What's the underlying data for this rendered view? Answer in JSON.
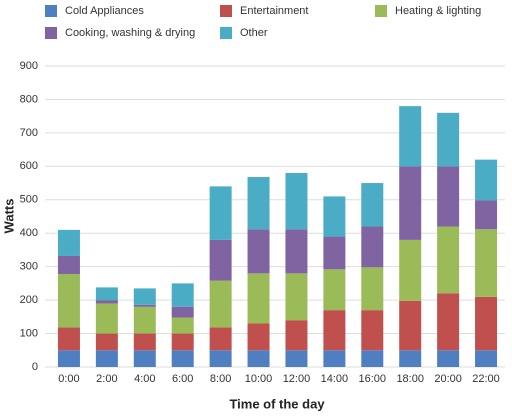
{
  "chart_data": {
    "type": "stacked-bar",
    "x_label": "Time of the day",
    "y_label": "Watts",
    "categories": [
      "0:00",
      "2:00",
      "4:00",
      "6:00",
      "8:00",
      "10:00",
      "12:00",
      "14:00",
      "16:00",
      "18:00",
      "20:00",
      "22:00"
    ],
    "series": [
      {
        "name": "Cold Appliances",
        "color": "#4f7fc1",
        "values": [
          50,
          50,
          50,
          50,
          50,
          50,
          50,
          50,
          50,
          50,
          50,
          50
        ]
      },
      {
        "name": "Entertainment",
        "color": "#c0504d",
        "values": [
          68,
          50,
          50,
          50,
          68,
          80,
          90,
          120,
          120,
          148,
          170,
          160
        ]
      },
      {
        "name": "Heating & lighting",
        "color": "#9bbb59",
        "values": [
          160,
          90,
          80,
          48,
          140,
          150,
          140,
          122,
          128,
          182,
          200,
          202
        ]
      },
      {
        "name": "Cooking, washing & drying",
        "color": "#8064a2",
        "values": [
          54,
          10,
          6,
          32,
          122,
          132,
          132,
          98,
          122,
          220,
          180,
          86
        ]
      },
      {
        "name": "Other",
        "color": "#4bacc6",
        "values": [
          78,
          38,
          49,
          70,
          160,
          156,
          168,
          120,
          130,
          180,
          160,
          122
        ]
      }
    ],
    "ylim": [
      0,
      900
    ],
    "yticks": [
      0,
      100,
      200,
      300,
      400,
      500,
      600,
      700,
      800,
      900
    ],
    "grid": true
  }
}
